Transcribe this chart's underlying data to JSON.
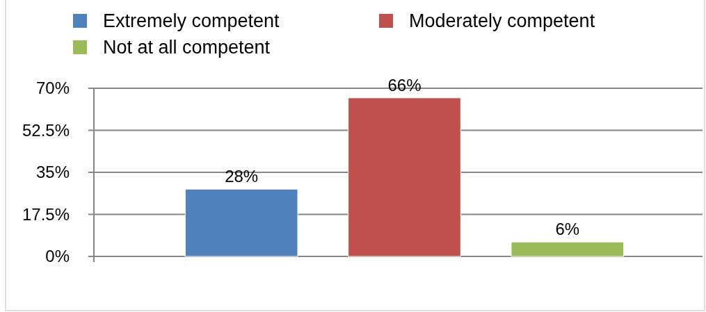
{
  "chart_data": {
    "type": "bar",
    "categories": [
      null,
      null,
      null
    ],
    "series": [
      {
        "name": "Extremely competent",
        "color": "#4f81bd",
        "values": [
          28,
          null,
          null
        ]
      },
      {
        "name": "Moderately competent",
        "color": "#c0504d",
        "values": [
          null,
          66,
          null
        ]
      },
      {
        "name": "Not at all competent",
        "color": "#9bbb59",
        "values": [
          null,
          null,
          6
        ]
      }
    ],
    "value_labels": [
      "28%",
      "66%",
      "6%"
    ],
    "ylim": [
      0,
      70
    ],
    "yticks": [
      {
        "value": 0,
        "label": "0%"
      },
      {
        "value": 17.5,
        "label": "17.5%"
      },
      {
        "value": 35,
        "label": "35%"
      },
      {
        "value": 52.5,
        "label": "52.5%"
      },
      {
        "value": 70,
        "label": "70%"
      }
    ],
    "grid": "y",
    "legend": "top"
  }
}
